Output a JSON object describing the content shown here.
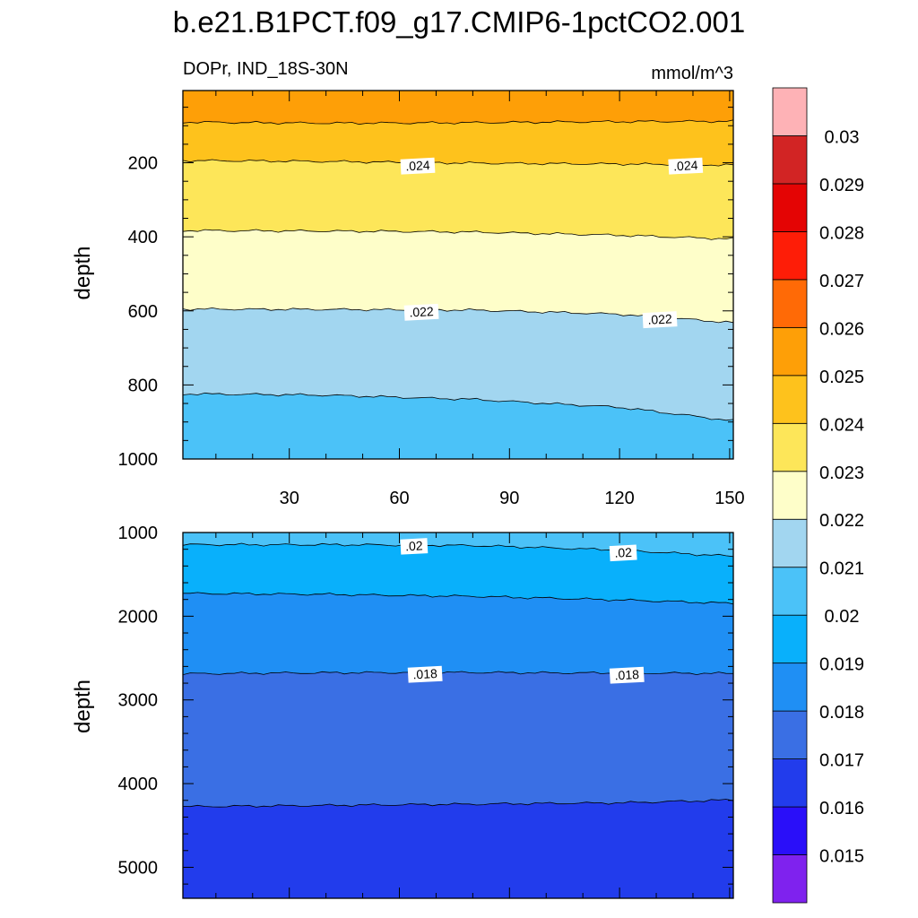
{
  "chart_data": {
    "type": "contour",
    "title": "b.e21.B1PCT.f09_g17.CMIP6-1pctCO2.001",
    "left_subtitle": "DOPr, IND_18S-30N",
    "right_subtitle": "mmol/m^3",
    "colorbar": {
      "levels": [
        "0.015",
        "0.016",
        "0.017",
        "0.018",
        "0.019",
        "0.02",
        "0.021",
        "0.022",
        "0.023",
        "0.024",
        "0.025",
        "0.026",
        "0.027",
        "0.028",
        "0.029",
        "0.03"
      ],
      "colors": [
        "#7f22ee",
        "#2a0ff9",
        "#223cec",
        "#3a6fe4",
        "#1f8ff4",
        "#09b0fb",
        "#4bc2f8",
        "#a2d6f0",
        "#fefec9",
        "#fde659",
        "#fec21c",
        "#fe9f07",
        "#ff6a06",
        "#fe1d07",
        "#e40404",
        "#d22424",
        "#feb2b6"
      ]
    },
    "x": {
      "ticks": [
        30,
        60,
        90,
        120,
        150
      ],
      "range": [
        1,
        151
      ]
    },
    "panels": [
      {
        "id": "upper",
        "ylabel": "depth",
        "ylim": [
          1000,
          5
        ],
        "yticks": [
          200,
          400,
          600,
          800,
          1000
        ],
        "fills": [
          {
            "lower_contour": 0.025,
            "color": "#fe9f07"
          },
          {
            "lower_contour": 0.024,
            "color": "#fec21c"
          },
          {
            "lower_contour": 0.023,
            "color": "#fde659"
          },
          {
            "lower_contour": 0.022,
            "color": "#fefec9"
          },
          {
            "lower_contour": 0.021,
            "color": "#a2d6f0"
          },
          {
            "lower_contour": 0.02,
            "color": "#4bc2f8"
          }
        ],
        "contours": [
          {
            "level": 0.025,
            "depth_at_x": [
              [
                1,
                90
              ],
              [
                40,
                92
              ],
              [
                80,
                92
              ],
              [
                120,
                90
              ],
              [
                151,
                88
              ]
            ]
          },
          {
            "level": 0.024,
            "depth_at_x": [
              [
                1,
                195
              ],
              [
                40,
                197
              ],
              [
                80,
                200
              ],
              [
                120,
                203
              ],
              [
                151,
                207
              ]
            ]
          },
          {
            "level": 0.023,
            "depth_at_x": [
              [
                1,
                382
              ],
              [
                40,
                385
              ],
              [
                80,
                388
              ],
              [
                120,
                395
              ],
              [
                151,
                405
              ]
            ]
          },
          {
            "level": 0.022,
            "depth_at_x": [
              [
                1,
                595
              ],
              [
                40,
                595
              ],
              [
                80,
                598
              ],
              [
                120,
                610
              ],
              [
                151,
                632
              ]
            ]
          },
          {
            "level": 0.021,
            "depth_at_x": [
              [
                1,
                825
              ],
              [
                40,
                828
              ],
              [
                80,
                838
              ],
              [
                120,
                860
              ],
              [
                151,
                898
              ]
            ]
          }
        ],
        "labels": [
          {
            "text": ".024",
            "x": 65,
            "depth": 210
          },
          {
            "text": ".024",
            "x": 138,
            "depth": 210
          },
          {
            "text": ".022",
            "x": 66,
            "depth": 605
          },
          {
            "text": ".022",
            "x": 131,
            "depth": 625
          }
        ]
      },
      {
        "id": "lower",
        "ylabel": "depth",
        "ylim": [
          5370,
          1000
        ],
        "yticks": [
          1000,
          2000,
          3000,
          4000,
          5000
        ],
        "fills": [
          {
            "lower_contour": 0.02,
            "color": "#4bc2f8"
          },
          {
            "lower_contour": 0.019,
            "color": "#09b0fb"
          },
          {
            "lower_contour": 0.018,
            "color": "#1f8ff4"
          },
          {
            "lower_contour": 0.017,
            "color": "#3a6fe4"
          },
          {
            "lower_contour": 0.016,
            "color": "#223cec"
          }
        ],
        "contours": [
          {
            "level": 0.02,
            "depth_at_x": [
              [
                1,
                1140
              ],
              [
                40,
                1145
              ],
              [
                80,
                1160
              ],
              [
                120,
                1210
              ],
              [
                151,
                1280
              ]
            ]
          },
          {
            "level": 0.019,
            "depth_at_x": [
              [
                1,
                1730
              ],
              [
                40,
                1735
              ],
              [
                80,
                1760
              ],
              [
                120,
                1810
              ],
              [
                151,
                1850
              ]
            ]
          },
          {
            "level": 0.018,
            "depth_at_x": [
              [
                1,
                2690
              ],
              [
                40,
                2680
              ],
              [
                80,
                2670
              ],
              [
                120,
                2675
              ],
              [
                151,
                2685
              ]
            ]
          },
          {
            "level": 0.017,
            "depth_at_x": [
              [
                1,
                4270
              ],
              [
                40,
                4260
              ],
              [
                80,
                4250
              ],
              [
                120,
                4230
              ],
              [
                151,
                4190
              ]
            ]
          }
        ],
        "labels": [
          {
            "text": ".02",
            "x": 64,
            "depth": 1170
          },
          {
            "text": ".02",
            "x": 121,
            "depth": 1250
          },
          {
            "text": ".018",
            "x": 67,
            "depth": 2700
          },
          {
            "text": ".018",
            "x": 122,
            "depth": 2710
          }
        ]
      }
    ]
  }
}
